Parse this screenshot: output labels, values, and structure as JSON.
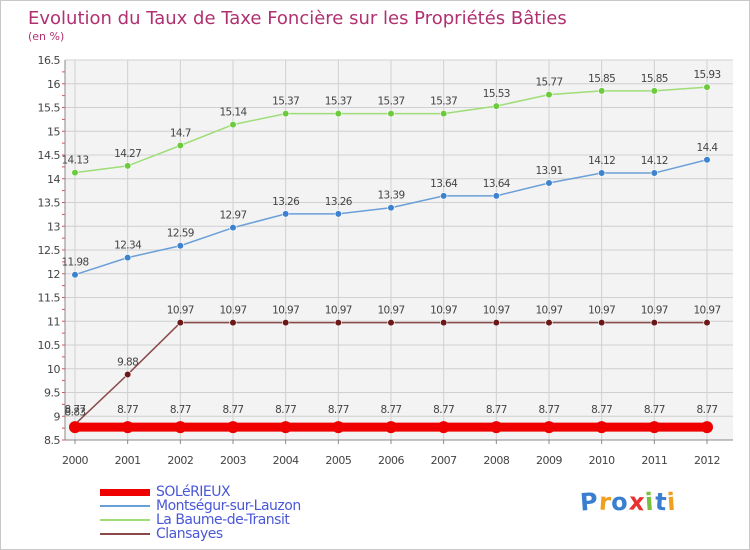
{
  "chart_data": {
    "type": "line",
    "title": "Evolution du Taux de Taxe Foncière sur les Propriétés Bâties",
    "subtitle": "(en %)",
    "xlabel": "",
    "ylabel": "",
    "categories": [
      "2000",
      "2001",
      "2002",
      "2003",
      "2004",
      "2005",
      "2006",
      "2007",
      "2008",
      "2009",
      "2010",
      "2011",
      "2012"
    ],
    "ylim": [
      8.5,
      16.5
    ],
    "yticks": [
      "8.5",
      "9",
      "9.5",
      "10",
      "10.5",
      "11",
      "11.5",
      "12",
      "12.5",
      "13",
      "13.5",
      "14",
      "14.5",
      "15",
      "15.5",
      "16",
      "16.5"
    ],
    "grid": true,
    "legend_position": "bottom-left",
    "series": [
      {
        "name": "SOLéRIEUX",
        "color": "#ee0000",
        "style": "thick",
        "values": [
          8.77,
          8.77,
          8.77,
          8.77,
          8.77,
          8.77,
          8.77,
          8.77,
          8.77,
          8.77,
          8.77,
          8.77,
          8.77
        ],
        "labels": [
          "8.77",
          "8.77",
          "8.77",
          "8.77",
          "8.77",
          "8.77",
          "8.77",
          "8.77",
          "8.77",
          "8.77",
          "8.77",
          "8.77",
          "8.77"
        ]
      },
      {
        "name": "Montségur-sur-Lauzon",
        "color": "#6a9fd8",
        "marker": "#3d82cf",
        "style": "thin",
        "values": [
          11.98,
          12.34,
          12.59,
          12.97,
          13.26,
          13.26,
          13.39,
          13.64,
          13.64,
          13.91,
          14.12,
          14.12,
          14.4
        ],
        "labels": [
          "11.98",
          "12.34",
          "12.59",
          "12.97",
          "13.26",
          "13.26",
          "13.39",
          "13.64",
          "13.64",
          "13.91",
          "14.12",
          "14.12",
          "14.4"
        ]
      },
      {
        "name": "La Baume-de-Transit",
        "color": "#9edd78",
        "marker": "#6ccb3c",
        "style": "thin",
        "values": [
          14.13,
          14.27,
          14.7,
          15.14,
          15.37,
          15.37,
          15.37,
          15.37,
          15.53,
          15.77,
          15.85,
          15.85,
          15.93
        ],
        "labels": [
          "14.13",
          "14.27",
          "14.7",
          "15.14",
          "15.37",
          "15.37",
          "15.37",
          "15.37",
          "15.53",
          "15.77",
          "15.85",
          "15.85",
          "15.93"
        ]
      },
      {
        "name": "Clansayes",
        "color": "#8a4a4a",
        "marker": "#6a1818",
        "style": "thin",
        "values": [
          8.83,
          9.88,
          10.97,
          10.97,
          10.97,
          10.97,
          10.97,
          10.97,
          10.97,
          10.97,
          10.97,
          10.97,
          10.97
        ],
        "labels": [
          "8.83",
          "9.88",
          "10.97",
          "10.97",
          "10.97",
          "10.97",
          "10.97",
          "10.97",
          "10.97",
          "10.97",
          "10.97",
          "10.97",
          "10.97"
        ]
      }
    ]
  },
  "logo": {
    "letters": [
      "P",
      "r",
      "o",
      "x",
      "i",
      "t",
      "i"
    ],
    "colors": [
      "#3a7fcf",
      "#f0a020",
      "#3a7fcf",
      "#e83030",
      "#7ac040",
      "#3a7fcf",
      "#f0a020"
    ]
  }
}
